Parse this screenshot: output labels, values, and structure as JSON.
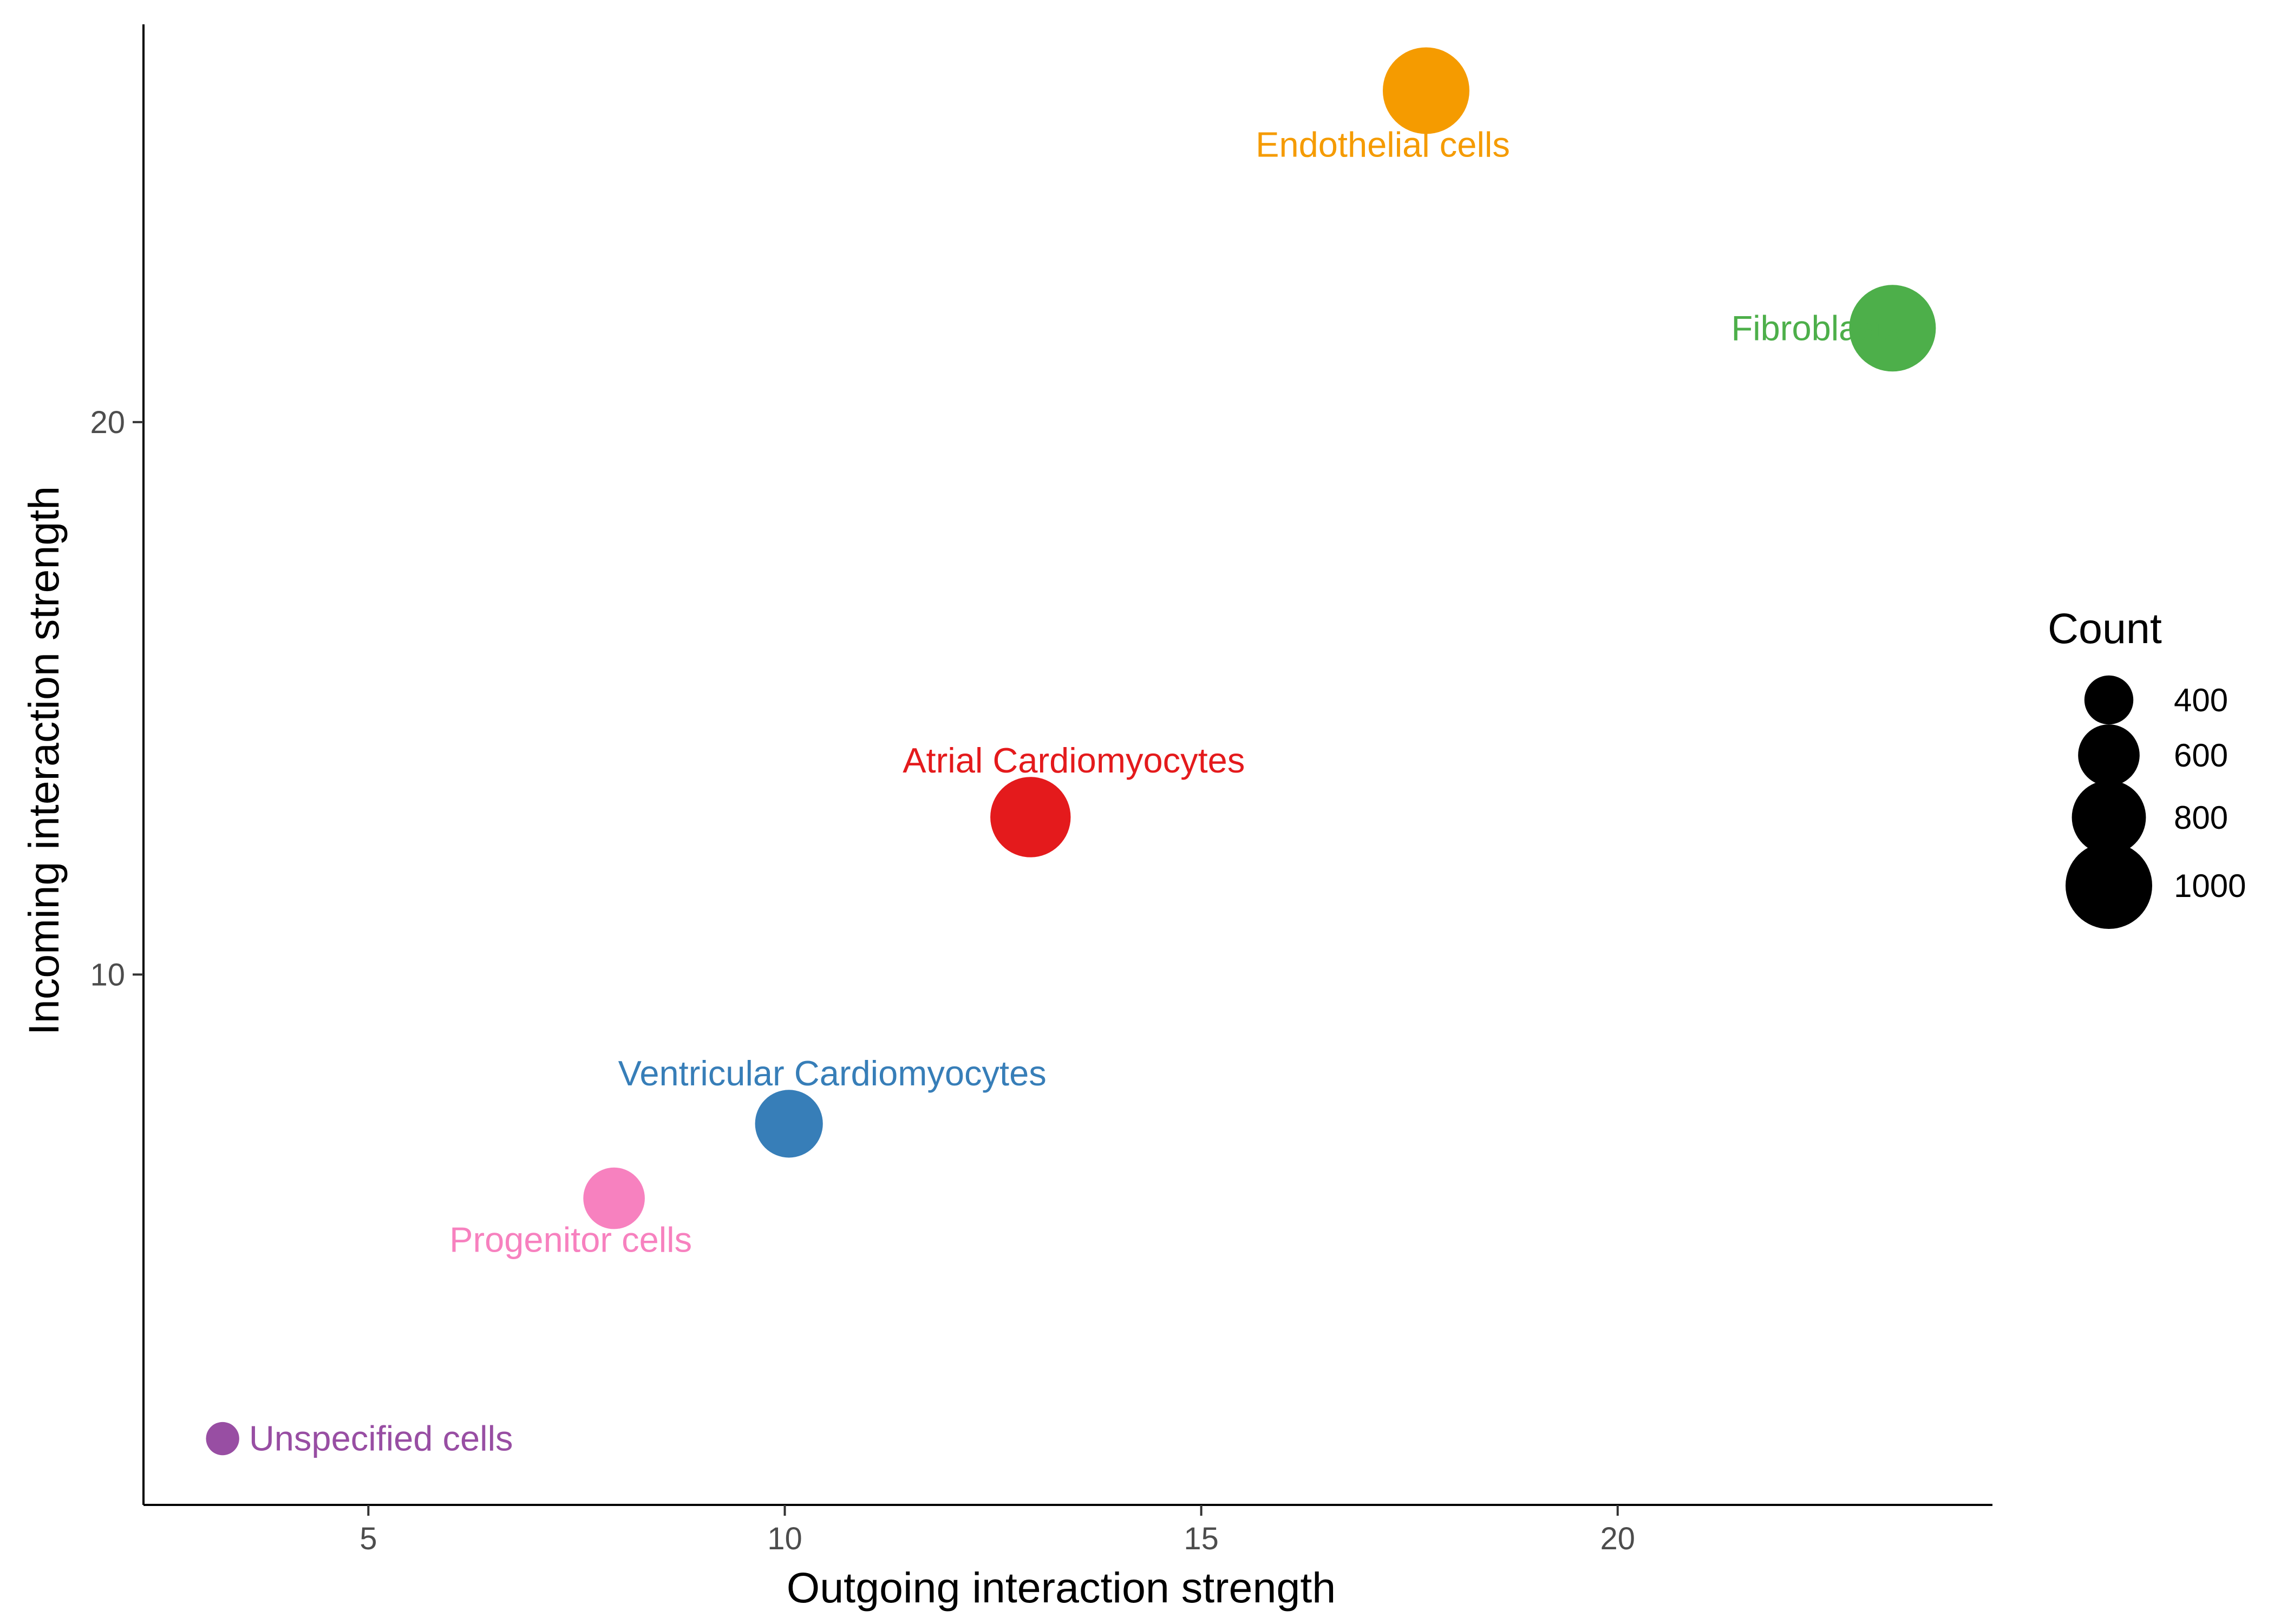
{
  "chart_data": {
    "type": "scatter",
    "xlabel": "Outgoing interaction strength",
    "ylabel": "Incoming interaction strength",
    "xlim": [
      2.3,
      24.5
    ],
    "ylim": [
      0.4,
      27.2
    ],
    "x_ticks": [
      5,
      10,
      15,
      20
    ],
    "y_ticks": [
      10,
      20
    ],
    "grid": false,
    "legend": {
      "title": "Count",
      "placement": "right",
      "entries": [
        {
          "label": "400",
          "value": 400
        },
        {
          "label": "600",
          "value": 600
        },
        {
          "label": "800",
          "value": 800
        },
        {
          "label": "1000",
          "value": 1000
        }
      ]
    },
    "points": [
      {
        "label": "Endothelial cells",
        "x": 17.7,
        "y": 26.0,
        "count": 1000,
        "color": "#f59b00",
        "label_pos": "below"
      },
      {
        "label": "Fibroblasts",
        "x": 23.3,
        "y": 21.7,
        "count": 1000,
        "color": "#4daf4a",
        "label_pos": "left"
      },
      {
        "label": "Atrial Cardiomyocytes",
        "x": 12.95,
        "y": 12.85,
        "count": 900,
        "color": "#e41a1c",
        "label_pos": "above"
      },
      {
        "label": "Ventricular Cardiomyocytes",
        "x": 10.05,
        "y": 7.3,
        "count": 700,
        "color": "#377eb8",
        "label_pos": "above"
      },
      {
        "label": "Progenitor cells",
        "x": 7.95,
        "y": 5.95,
        "count": 600,
        "color": "#f781bf",
        "label_pos": "below"
      },
      {
        "label": "Unspecified cells",
        "x": 3.25,
        "y": 1.6,
        "count": 150,
        "color": "#984ea3",
        "label_pos": "right"
      }
    ]
  }
}
